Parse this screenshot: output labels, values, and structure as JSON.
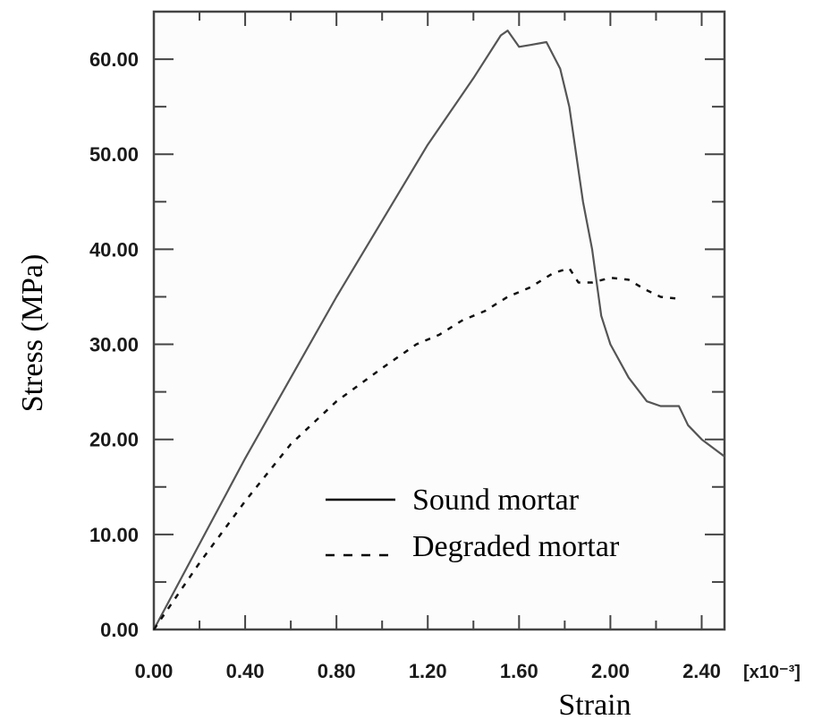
{
  "chart_data": {
    "type": "line",
    "title": "",
    "xlabel": "Strain",
    "x_multiplier_label": "[x10⁻³]",
    "ylabel": "Stress (MPa)",
    "xlim": [
      0,
      2.5
    ],
    "ylim": [
      0,
      65
    ],
    "x_ticks": [
      "0.00",
      "0.40",
      "0.80",
      "1.20",
      "1.60",
      "2.00",
      "2.40"
    ],
    "y_ticks": [
      "0.00",
      "10.00",
      "20.00",
      "30.00",
      "40.00",
      "50.00",
      "60.00"
    ],
    "grid": false,
    "legend_position": "lower center (inside plot)",
    "series": [
      {
        "name": "Sound mortar",
        "style": "solid",
        "color": "#555555",
        "x": [
          0.0,
          0.4,
          0.8,
          1.2,
          1.4,
          1.52,
          1.55,
          1.6,
          1.65,
          1.72,
          1.78,
          1.82,
          1.88,
          1.92,
          1.96,
          2.0,
          2.08,
          2.16,
          2.22,
          2.3,
          2.34,
          2.4,
          2.5
        ],
        "values": [
          0.0,
          18.0,
          35.0,
          51.0,
          58.0,
          62.5,
          63.0,
          61.3,
          61.5,
          61.8,
          59.0,
          55.0,
          45.0,
          40.0,
          33.0,
          30.0,
          26.5,
          24.0,
          23.5,
          23.5,
          21.5,
          20.0,
          18.2
        ]
      },
      {
        "name": "Degraded mortar",
        "style": "dashed",
        "color": "#111111",
        "x": [
          0.0,
          0.2,
          0.4,
          0.6,
          0.8,
          1.0,
          1.15,
          1.25,
          1.35,
          1.45,
          1.55,
          1.65,
          1.75,
          1.82,
          1.86,
          1.92,
          2.0,
          2.08,
          2.15,
          2.22,
          2.3
        ],
        "values": [
          0.0,
          7.0,
          13.5,
          19.5,
          24.0,
          27.5,
          30.0,
          31.0,
          32.5,
          33.5,
          35.0,
          36.0,
          37.5,
          38.0,
          36.5,
          36.5,
          37.0,
          36.8,
          35.8,
          35.0,
          34.8
        ]
      }
    ]
  },
  "legend": {
    "items": [
      {
        "label": "Sound mortar",
        "style": "solid"
      },
      {
        "label": "Degraded mortar",
        "style": "dashed"
      }
    ]
  }
}
